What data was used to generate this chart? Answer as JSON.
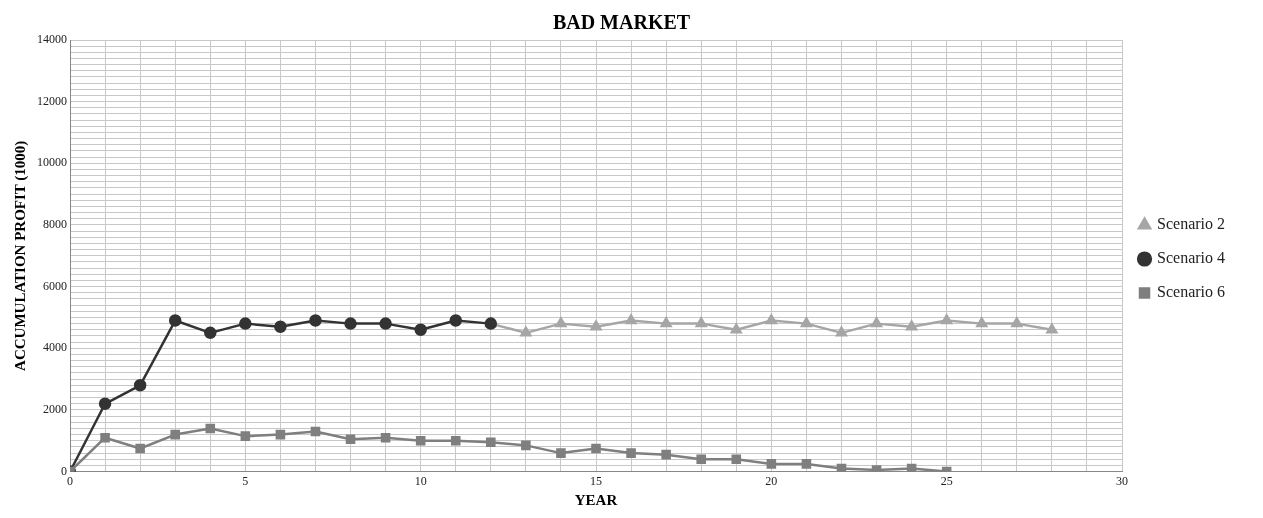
{
  "chart_data": {
    "type": "line",
    "title": "BAD MARKET",
    "xlabel": "YEAR",
    "ylabel": "ACCUMULATION PROFIT (1000)",
    "xlim": [
      0,
      30
    ],
    "xticks": [
      0,
      {
        "value": 1,
        "label": null
      },
      {
        "value": 2,
        "label": null
      },
      {
        "value": 3,
        "label": null
      },
      {
        "value": 4,
        "label": null
      },
      5,
      {
        "value": 6,
        "label": null
      },
      {
        "value": 7,
        "label": null
      },
      {
        "value": 8,
        "label": null
      },
      {
        "value": 9,
        "label": null
      },
      10,
      {
        "value": 11,
        "label": null
      },
      {
        "value": 12,
        "label": null
      },
      {
        "value": 13,
        "label": null
      },
      {
        "value": 14,
        "label": null
      },
      15,
      {
        "value": 16,
        "label": null
      },
      {
        "value": 17,
        "label": null
      },
      {
        "value": 18,
        "label": null
      },
      {
        "value": 19,
        "label": null
      },
      20,
      {
        "value": 21,
        "label": null
      },
      {
        "value": 22,
        "label": null
      },
      {
        "value": 23,
        "label": null
      },
      {
        "value": 24,
        "label": null
      },
      25,
      {
        "value": 26,
        "label": null
      },
      {
        "value": 27,
        "label": null
      },
      {
        "value": 28,
        "label": null
      },
      {
        "value": 29,
        "label": null
      },
      30
    ],
    "ylim": [
      0,
      14000
    ],
    "yticks": [
      0,
      {
        "value": 200,
        "label": null
      },
      {
        "value": 400,
        "label": null
      },
      {
        "value": 600,
        "label": null
      },
      {
        "value": 800,
        "label": null
      },
      {
        "value": 1000,
        "label": null
      },
      {
        "value": 1200,
        "label": null
      },
      {
        "value": 1400,
        "label": null
      },
      {
        "value": 1600,
        "label": null
      },
      {
        "value": 1800,
        "label": null
      },
      2000,
      {
        "value": 2200,
        "label": null
      },
      {
        "value": 2400,
        "label": null
      },
      {
        "value": 2600,
        "label": null
      },
      {
        "value": 2800,
        "label": null
      },
      {
        "value": 3000,
        "label": null
      },
      {
        "value": 3200,
        "label": null
      },
      {
        "value": 3400,
        "label": null
      },
      {
        "value": 3600,
        "label": null
      },
      {
        "value": 3800,
        "label": null
      },
      4000,
      {
        "value": 4200,
        "label": null
      },
      {
        "value": 4400,
        "label": null
      },
      {
        "value": 4600,
        "label": null
      },
      {
        "value": 4800,
        "label": null
      },
      {
        "value": 5000,
        "label": null
      },
      {
        "value": 5200,
        "label": null
      },
      {
        "value": 5400,
        "label": null
      },
      {
        "value": 5600,
        "label": null
      },
      {
        "value": 5800,
        "label": null
      },
      6000,
      {
        "value": 6200,
        "label": null
      },
      {
        "value": 6400,
        "label": null
      },
      {
        "value": 6600,
        "label": null
      },
      {
        "value": 6800,
        "label": null
      },
      {
        "value": 7000,
        "label": null
      },
      {
        "value": 7200,
        "label": null
      },
      {
        "value": 7400,
        "label": null
      },
      {
        "value": 7600,
        "label": null
      },
      {
        "value": 7800,
        "label": null
      },
      8000,
      {
        "value": 8200,
        "label": null
      },
      {
        "value": 8400,
        "label": null
      },
      {
        "value": 8600,
        "label": null
      },
      {
        "value": 8800,
        "label": null
      },
      {
        "value": 9000,
        "label": null
      },
      {
        "value": 9200,
        "label": null
      },
      {
        "value": 9400,
        "label": null
      },
      {
        "value": 9600,
        "label": null
      },
      {
        "value": 9800,
        "label": null
      },
      10000,
      {
        "value": 10200,
        "label": null
      },
      {
        "value": 10400,
        "label": null
      },
      {
        "value": 10600,
        "label": null
      },
      {
        "value": 10800,
        "label": null
      },
      {
        "value": 11000,
        "label": null
      },
      {
        "value": 11200,
        "label": null
      },
      {
        "value": 11400,
        "label": null
      },
      {
        "value": 11600,
        "label": null
      },
      {
        "value": 11800,
        "label": null
      },
      12000,
      {
        "value": 12200,
        "label": null
      },
      {
        "value": 12400,
        "label": null
      },
      {
        "value": 12600,
        "label": null
      },
      {
        "value": 12800,
        "label": null
      },
      {
        "value": 13000,
        "label": null
      },
      {
        "value": 13200,
        "label": null
      },
      {
        "value": 13400,
        "label": null
      },
      {
        "value": 13600,
        "label": null
      },
      {
        "value": 13800,
        "label": null
      },
      14000
    ],
    "grid": true,
    "legend": "right",
    "series": [
      {
        "name": "Scenario 2",
        "color": "#a6a6a6",
        "marker": "triangle",
        "x": [
          12,
          13,
          14,
          15,
          16,
          17,
          18,
          19,
          20,
          21,
          22,
          23,
          24,
          25,
          26,
          27,
          28
        ],
        "values": [
          4800,
          4500,
          4800,
          4700,
          4900,
          4800,
          4800,
          4600,
          4900,
          4800,
          4500,
          4800,
          4700,
          4900,
          4800,
          4800,
          4600
        ]
      },
      {
        "name": "Scenario 4",
        "color": "#333333",
        "marker": "circle",
        "x": [
          0,
          1,
          2,
          3,
          4,
          5,
          6,
          7,
          8,
          9,
          10,
          11,
          12
        ],
        "values": [
          0,
          2200,
          2800,
          4900,
          4500,
          4800,
          4700,
          4900,
          4800,
          4800,
          4600,
          4900,
          4800
        ]
      },
      {
        "name": "Scenario 6",
        "color": "#7f7f7f",
        "marker": "square",
        "x": [
          0,
          1,
          2,
          3,
          4,
          5,
          6,
          7,
          8,
          9,
          10,
          11,
          12,
          13,
          14,
          15,
          16,
          17,
          18,
          19,
          20,
          21,
          22,
          23,
          24,
          25
        ],
        "values": [
          0,
          1100,
          750,
          1200,
          1400,
          1150,
          1200,
          1300,
          1050,
          1100,
          1000,
          1000,
          950,
          850,
          600,
          750,
          600,
          550,
          400,
          400,
          250,
          250,
          100,
          50,
          100,
          0
        ]
      }
    ]
  }
}
